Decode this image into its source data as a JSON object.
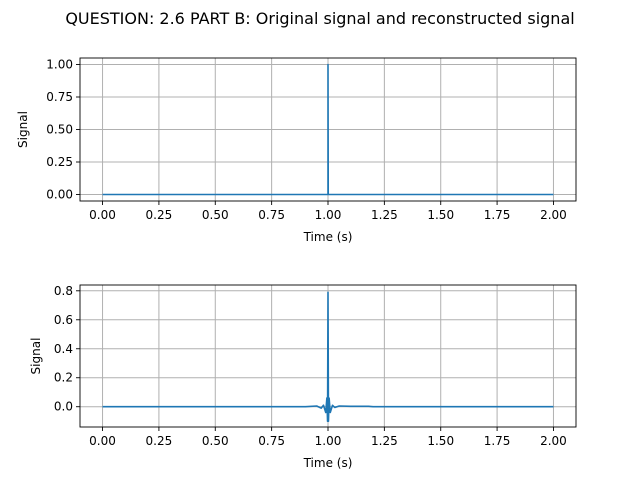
{
  "figure": {
    "suptitle": "QUESTION: 2.6 PART B:  Original signal and reconstructed signal"
  },
  "chart_data": [
    {
      "type": "line",
      "title": "",
      "xlabel": "Time (s)",
      "ylabel": "Signal",
      "xlim": [
        -0.1,
        2.1
      ],
      "ylim": [
        -0.05,
        1.05
      ],
      "xticks": [
        0.0,
        0.25,
        0.5,
        0.75,
        1.0,
        1.25,
        1.5,
        1.75,
        2.0
      ],
      "xtick_labels": [
        "0.00",
        "0.25",
        "0.50",
        "0.75",
        "1.00",
        "1.25",
        "1.50",
        "1.75",
        "2.00"
      ],
      "yticks": [
        0.0,
        0.25,
        0.5,
        0.75,
        1.0
      ],
      "ytick_labels": [
        "0.00",
        "0.25",
        "0.50",
        "0.75",
        "1.00"
      ],
      "grid": true,
      "color": "#1f77b4",
      "series": [
        {
          "x": [
            0.0,
            0.999,
            1.0,
            1.0,
            1.001,
            2.0
          ],
          "y": [
            0.0,
            0.0,
            0.0,
            1.0,
            0.0,
            0.0
          ]
        }
      ]
    },
    {
      "type": "line",
      "title": "",
      "xlabel": "Time (s)",
      "ylabel": "Signal",
      "xlim": [
        -0.1,
        2.1
      ],
      "ylim": [
        -0.14,
        0.84
      ],
      "xticks": [
        0.0,
        0.25,
        0.5,
        0.75,
        1.0,
        1.25,
        1.5,
        1.75,
        2.0
      ],
      "xtick_labels": [
        "0.00",
        "0.25",
        "0.50",
        "0.75",
        "1.00",
        "1.25",
        "1.50",
        "1.75",
        "2.00"
      ],
      "yticks": [
        0.0,
        0.2,
        0.4,
        0.6,
        0.8
      ],
      "ytick_labels": [
        "0.0",
        "0.2",
        "0.4",
        "0.6",
        "0.8"
      ],
      "grid": true,
      "color": "#1f77b4",
      "series": [
        {
          "x": [
            0.0,
            0.9,
            0.95,
            0.97,
            0.98,
            0.99,
            0.995,
            0.998,
            1.0,
            1.002,
            1.005,
            1.01,
            1.02,
            1.03,
            1.05,
            1.1,
            1.18,
            1.2,
            2.0
          ],
          "y": [
            0.0,
            0.0,
            0.005,
            -0.01,
            0.01,
            -0.04,
            0.06,
            -0.1,
            0.79,
            -0.1,
            0.06,
            -0.04,
            0.01,
            -0.005,
            0.005,
            0.003,
            0.003,
            0.0,
            0.0
          ]
        }
      ]
    }
  ]
}
